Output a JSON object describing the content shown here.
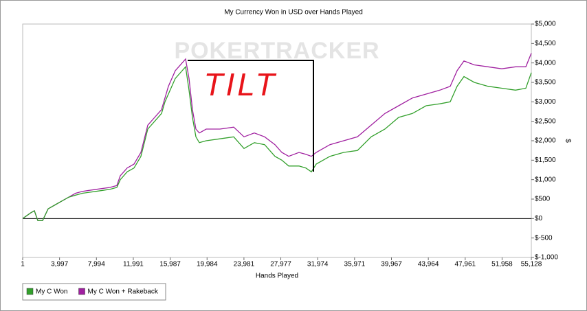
{
  "chart_data": {
    "type": "line",
    "title": "My Currency Won in USD over Hands Played",
    "watermark": "POKERTRACKER",
    "annotation": "TILT",
    "x_label": "Hands Played",
    "y_label": "$",
    "x": [
      1,
      894,
      1266,
      1639,
      2161,
      2757,
      3502,
      4246,
      4991,
      5736,
      6481,
      7971,
      9461,
      10206,
      10579,
      11324,
      12069,
      12814,
      13559,
      14304,
      15049,
      15421,
      15794,
      16539,
      17284,
      17656,
      18029,
      18401,
      18774,
      19146,
      19891,
      21381,
      22871,
      23988,
      25106,
      26223,
      27341,
      28086,
      28831,
      29948,
      30693,
      31289,
      31811,
      33301,
      34791,
      36281,
      37771,
      39261,
      40751,
      42241,
      43731,
      45221,
      46338,
      47083,
      47828,
      48946,
      50436,
      51926,
      53416,
      54533,
      55128
    ],
    "series": [
      {
        "name": "My C Won",
        "color": "#33a02c",
        "values": [
          0,
          150,
          200,
          -50,
          -50,
          250,
          350,
          450,
          550,
          600,
          650,
          700,
          750,
          800,
          1000,
          1200,
          1300,
          1600,
          2300,
          2500,
          2700,
          3000,
          3200,
          3600,
          3800,
          3900,
          3300,
          2600,
          2100,
          1950,
          2000,
          2050,
          2100,
          1800,
          1950,
          1900,
          1600,
          1500,
          1350,
          1350,
          1300,
          1200,
          1400,
          1600,
          1700,
          1750,
          2100,
          2300,
          2600,
          2700,
          2900,
          2950,
          3000,
          3400,
          3650,
          3500,
          3400,
          3350,
          3300,
          3350,
          3750
        ]
      },
      {
        "name": "My C Won + Rakeback",
        "color": "#a020a0",
        "values": [
          0,
          150,
          200,
          -50,
          -50,
          250,
          350,
          450,
          550,
          650,
          700,
          750,
          800,
          850,
          1100,
          1300,
          1400,
          1700,
          2400,
          2600,
          2800,
          3100,
          3400,
          3800,
          4000,
          4100,
          3600,
          2800,
          2300,
          2200,
          2300,
          2300,
          2350,
          2100,
          2200,
          2100,
          1900,
          1700,
          1600,
          1700,
          1650,
          1600,
          1700,
          1900,
          2000,
          2100,
          2400,
          2700,
          2900,
          3100,
          3200,
          3300,
          3400,
          3800,
          4050,
          3950,
          3900,
          3850,
          3900,
          3900,
          4250
        ]
      }
    ],
    "xlim": [
      1,
      55128
    ],
    "xticks": [
      1,
      {
        "value": 3997,
        "label": "3,997"
      },
      {
        "value": 7994,
        "label": "7,994"
      },
      {
        "value": 11991,
        "label": "11,991"
      },
      {
        "value": 15987,
        "label": "15,987"
      },
      {
        "value": 19984,
        "label": "19,984"
      },
      {
        "value": 23981,
        "label": "23,981"
      },
      {
        "value": 27977,
        "label": "27,977"
      },
      {
        "value": 31974,
        "label": "31,974"
      },
      {
        "value": 35971,
        "label": "35,971"
      },
      {
        "value": 39967,
        "label": "39,967"
      },
      {
        "value": 43964,
        "label": "43,964"
      },
      {
        "value": 47961,
        "label": "47,961"
      },
      {
        "value": 51958,
        "label": "51,958"
      },
      {
        "value": 55128,
        "label": "55,128"
      }
    ],
    "ylim": [
      -1000,
      5000
    ],
    "yticks": [
      {
        "value": -1000,
        "label": "$-1,000"
      },
      {
        "value": -500,
        "label": "$-500"
      },
      {
        "value": 0,
        "label": "$0"
      },
      {
        "value": 500,
        "label": "$500"
      },
      {
        "value": 1000,
        "label": "$1,000"
      },
      {
        "value": 1500,
        "label": "$1,500"
      },
      {
        "value": 2000,
        "label": "$2,000"
      },
      {
        "value": 2500,
        "label": "$2,500"
      },
      {
        "value": 3000,
        "label": "$3,000"
      },
      {
        "value": 3500,
        "label": "$3,500"
      },
      {
        "value": 4000,
        "label": "$4,000"
      },
      {
        "value": 4500,
        "label": "$4,500"
      },
      {
        "value": 5000,
        "label": "$5,000"
      }
    ]
  }
}
